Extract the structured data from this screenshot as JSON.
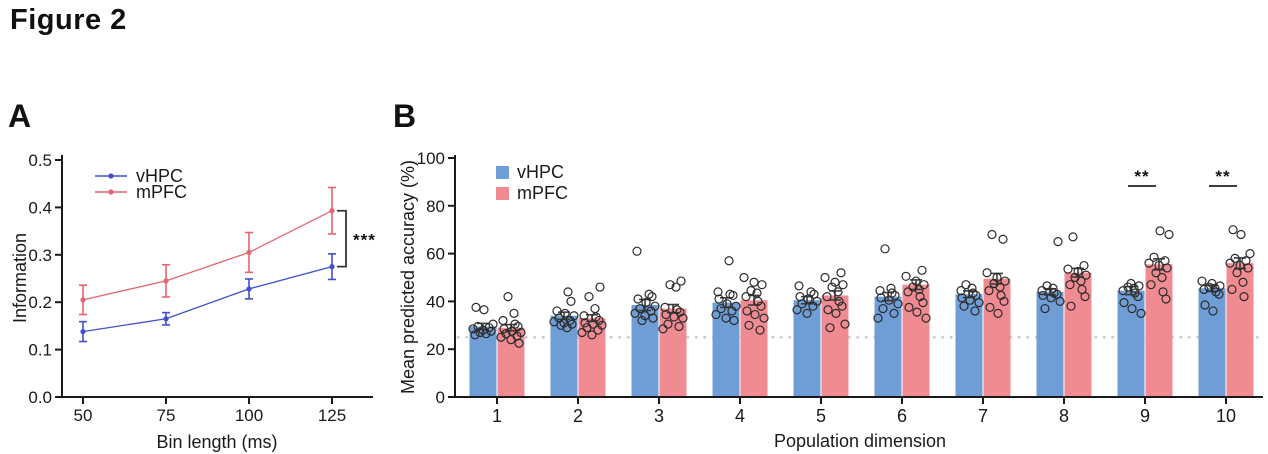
{
  "figure": {
    "title": "Figure 2"
  },
  "colors": {
    "vhpc_line": "#4150cc",
    "mpfc_line": "#e5646f",
    "vhpc_bar": "#6f9ed6",
    "mpfc_bar": "#f18b92",
    "scatter_stroke": "#2b2b2b",
    "errorbar_b": "#3c3c3c",
    "chance_line": "#cbcbcb",
    "axis": "#1a1a1a",
    "sig": "#222222"
  },
  "panels": {
    "A": {
      "label": "A",
      "chart_data": {
        "type": "line",
        "x": [
          50,
          75,
          100,
          125
        ],
        "xlabel": "Bin length (ms)",
        "ylabel": "Information",
        "ylim": [
          0,
          0.5
        ],
        "yticks": [
          0,
          0.1,
          0.2,
          0.3,
          0.4,
          0.5
        ],
        "ytick_format": "fixed1",
        "legend_position": "top-left-inside",
        "grid": false,
        "series": [
          {
            "name": "vHPC",
            "values": [
              0.138,
              0.165,
              0.228,
              0.275
            ],
            "errors": [
              0.021,
              0.013,
              0.021,
              0.027
            ]
          },
          {
            "name": "mPFC",
            "values": [
              0.205,
              0.245,
              0.305,
              0.393
            ],
            "errors": [
              0.031,
              0.034,
              0.042,
              0.049
            ]
          }
        ],
        "significance": {
          "label": "***",
          "at_x": 125,
          "compares": [
            "mPFC",
            "vHPC"
          ]
        }
      }
    },
    "B": {
      "label": "B",
      "chart_data": {
        "type": "bar",
        "categories": [
          "1",
          "2",
          "3",
          "4",
          "5",
          "6",
          "7",
          "8",
          "9",
          "10"
        ],
        "xlabel": "Population dimension",
        "ylabel": "Mean predicted accuracy (%)",
        "ylim": [
          0,
          100
        ],
        "yticks": [
          0,
          20,
          40,
          60,
          80,
          100
        ],
        "ytick_format": "int",
        "chance_level": 25,
        "legend_position": "top-left-inside",
        "grid": false,
        "series": [
          {
            "name": "vHPC",
            "values": [
              29.5,
              34,
              38.5,
              39.5,
              40.5,
              42,
              43,
              44,
              44.5,
              45.5
            ],
            "errors": [
              1.3,
              1.5,
              2.3,
              2.0,
              1.5,
              1.7,
              1.4,
              1.3,
              1.7,
              1.3
            ],
            "points": [
              [
                26,
                26.5,
                27,
                27.5,
                28,
                28.5,
                29,
                29.5,
                30.5,
                36.5,
                37.5
              ],
              [
                29,
                30,
                30.5,
                31,
                31.5,
                32,
                33,
                34,
                35,
                36,
                40,
                44
              ],
              [
                32,
                33,
                34,
                35,
                36,
                37,
                38,
                39.5,
                41,
                42,
                43,
                61
              ],
              [
                32,
                33,
                34.5,
                36,
                37,
                38,
                39,
                41,
                42.5,
                43,
                44,
                57
              ],
              [
                35,
                36.5,
                38,
                39,
                40,
                41,
                42,
                43,
                44,
                46.5
              ],
              [
                33,
                35,
                37,
                39,
                40.5,
                41.5,
                42.5,
                43.5,
                44.5,
                45.5,
                62
              ],
              [
                36,
                38,
                39.5,
                40.5,
                41.5,
                42.5,
                43.5,
                44.5,
                45.5,
                47
              ],
              [
                37,
                40,
                41.5,
                42.5,
                43,
                43.5,
                44.5,
                45.5,
                46.5,
                65
              ],
              [
                35,
                37,
                39.5,
                42,
                43.5,
                44.5,
                45.5,
                46,
                46.5,
                47.5
              ],
              [
                36,
                38.5,
                43,
                44,
                45,
                45.5,
                46,
                46.5,
                47.5,
                48.5
              ]
            ]
          },
          {
            "name": "mPFC",
            "values": [
              29,
              33,
              37,
              40.5,
              42.5,
              47,
              49.5,
              52,
              55.5,
              56
            ],
            "errors": [
              1.3,
              1.4,
              1.7,
              2.0,
              1.9,
              2.0,
              2.2,
              1.8,
              2.3,
              2.2
            ],
            "points": [
              [
                22.5,
                24,
                25,
                25.5,
                26.5,
                27,
                27.5,
                28.5,
                29.5,
                30.5,
                32,
                35,
                42
              ],
              [
                26,
                27,
                28,
                29,
                30,
                30.5,
                31,
                32,
                33.5,
                34,
                37,
                42,
                46
              ],
              [
                28.5,
                29.5,
                30.5,
                33,
                33.5,
                34.5,
                35.5,
                36.5,
                37.5,
                46,
                47,
                48.5
              ],
              [
                28,
                30,
                33,
                34.5,
                36,
                38,
                40,
                42,
                43.5,
                44.5,
                47,
                48,
                50
              ],
              [
                29,
                30.5,
                35,
                36.5,
                38,
                40,
                42,
                44,
                46,
                47,
                48,
                50,
                52
              ],
              [
                33,
                35.5,
                37.5,
                39.5,
                42,
                44,
                45,
                46,
                47,
                48.5,
                50.5,
                53
              ],
              [
                35,
                37.5,
                40,
                42.5,
                44.5,
                46,
                47.5,
                48.5,
                50,
                52,
                66,
                68
              ],
              [
                38,
                42,
                45,
                47,
                48.5,
                50,
                51,
                52.5,
                53.5,
                55,
                67
              ],
              [
                41,
                44,
                47,
                50,
                52,
                54,
                55,
                56,
                57,
                58.5,
                68,
                69.5
              ],
              [
                42,
                45,
                48,
                52,
                54,
                55,
                56,
                57,
                58,
                60,
                68,
                70
              ]
            ]
          }
        ],
        "significance": [
          {
            "category": "9",
            "label": "**"
          },
          {
            "category": "10",
            "label": "**"
          }
        ]
      }
    }
  }
}
